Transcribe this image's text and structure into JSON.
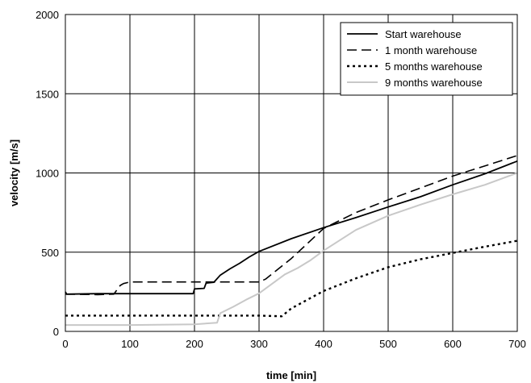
{
  "chart_data": {
    "type": "line",
    "title": "",
    "xlabel": "time [min]",
    "ylabel": "velocity [m/s]",
    "xlim": [
      0,
      700
    ],
    "ylim": [
      0,
      2000
    ],
    "xticks": [
      0,
      100,
      200,
      300,
      400,
      500,
      600,
      700
    ],
    "yticks": [
      0,
      500,
      1000,
      1500,
      2000
    ],
    "grid": true,
    "legend_position": "top-right",
    "series": [
      {
        "name": "Start warehouse",
        "style": "solid",
        "color": "#000000",
        "points": [
          [
            0,
            250
          ],
          [
            2,
            235
          ],
          [
            50,
            238
          ],
          [
            100,
            238
          ],
          [
            150,
            238
          ],
          [
            198,
            238
          ],
          [
            200,
            268
          ],
          [
            215,
            272
          ],
          [
            218,
            305
          ],
          [
            230,
            310
          ],
          [
            240,
            355
          ],
          [
            255,
            395
          ],
          [
            270,
            430
          ],
          [
            285,
            470
          ],
          [
            300,
            505
          ],
          [
            350,
            585
          ],
          [
            400,
            655
          ],
          [
            450,
            718
          ],
          [
            500,
            785
          ],
          [
            550,
            850
          ],
          [
            600,
            925
          ],
          [
            650,
            995
          ],
          [
            700,
            1075
          ]
        ]
      },
      {
        "name": "1 month warehouse",
        "style": "dashed",
        "color": "#000000",
        "points": [
          [
            0,
            235
          ],
          [
            50,
            232
          ],
          [
            75,
            235
          ],
          [
            85,
            290
          ],
          [
            90,
            302
          ],
          [
            100,
            312
          ],
          [
            150,
            312
          ],
          [
            200,
            312
          ],
          [
            250,
            312
          ],
          [
            300,
            312
          ],
          [
            310,
            330
          ],
          [
            350,
            460
          ],
          [
            400,
            650
          ],
          [
            450,
            750
          ],
          [
            500,
            830
          ],
          [
            550,
            905
          ],
          [
            600,
            980
          ],
          [
            650,
            1045
          ],
          [
            700,
            1110
          ]
        ]
      },
      {
        "name": "5 months warehouse",
        "style": "dotted",
        "color": "#000000",
        "points": [
          [
            0,
            100
          ],
          [
            100,
            100
          ],
          [
            200,
            100
          ],
          [
            300,
            100
          ],
          [
            335,
            95
          ],
          [
            350,
            145
          ],
          [
            400,
            255
          ],
          [
            450,
            335
          ],
          [
            500,
            405
          ],
          [
            550,
            455
          ],
          [
            600,
            495
          ],
          [
            650,
            535
          ],
          [
            700,
            572
          ]
        ]
      },
      {
        "name": "9 months warehouse",
        "style": "solid",
        "color": "#c8c8c8",
        "points": [
          [
            0,
            40
          ],
          [
            100,
            40
          ],
          [
            200,
            45
          ],
          [
            235,
            55
          ],
          [
            240,
            115
          ],
          [
            260,
            155
          ],
          [
            280,
            200
          ],
          [
            300,
            240
          ],
          [
            320,
            300
          ],
          [
            340,
            360
          ],
          [
            360,
            400
          ],
          [
            380,
            450
          ],
          [
            400,
            510
          ],
          [
            450,
            640
          ],
          [
            500,
            730
          ],
          [
            550,
            800
          ],
          [
            600,
            865
          ],
          [
            650,
            925
          ],
          [
            700,
            1000
          ]
        ]
      }
    ]
  }
}
